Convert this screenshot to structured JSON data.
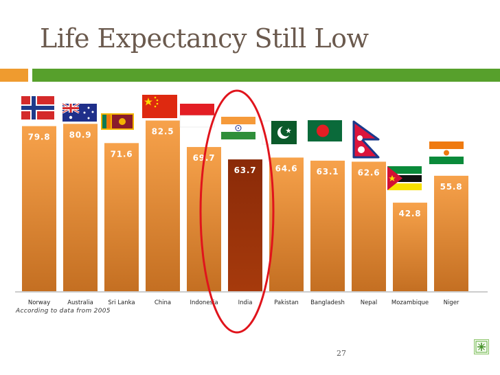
{
  "slide": {
    "title": "Life Expectancy Still Low",
    "source_note": "According to data from 2005",
    "page_number": "27"
  },
  "colors": {
    "bar_top": "#f7a24b",
    "bar_bottom": "#c46f22",
    "highlight_top": "#8a2a08",
    "highlight_bottom": "#a63a0c",
    "circle": "#e0141c",
    "accent_orange": "#ef9b2f",
    "accent_green": "#57a02c"
  },
  "chart_data": {
    "type": "bar",
    "title": "Life Expectancy Still Low",
    "xlabel": "",
    "ylabel": "",
    "ylim": [
      0,
      100
    ],
    "grid": false,
    "categories": [
      "Norway",
      "Australia",
      "Sri Lanka",
      "China",
      "Indonesia",
      "India",
      "Pakistan",
      "Bangladesh",
      "Nepal",
      "Mozambique",
      "Niger"
    ],
    "values": [
      79.8,
      80.9,
      71.6,
      82.5,
      69.7,
      63.7,
      64.6,
      63.1,
      62.6,
      42.8,
      55.8
    ],
    "highlighted_category": "India",
    "annotation": "red ellipse around India"
  },
  "flags": [
    "norway-flag",
    "australia-flag",
    "sri-lanka-flag",
    "china-flag",
    "indonesia-flag",
    "india-flag",
    "pakistan-flag",
    "bangladesh-flag",
    "nepal-flag",
    "mozambique-flag",
    "niger-flag"
  ]
}
